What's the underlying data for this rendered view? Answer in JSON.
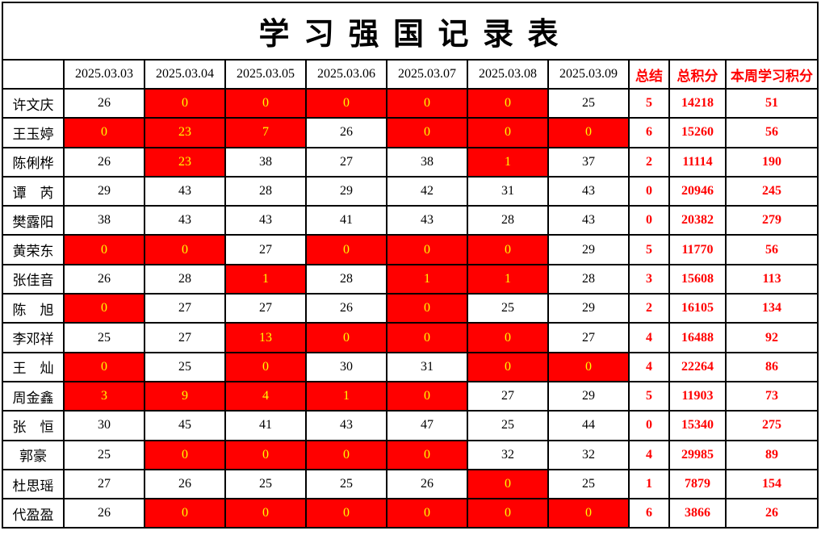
{
  "title": "学 习 强 国 记 录 表",
  "colors": {
    "highlight_bg": "#FF0000",
    "highlight_text": "#FFFF00",
    "accent_text": "#FF0000",
    "grid_line": "#000000"
  },
  "table": {
    "corner_label": "",
    "date_headers": [
      "2025.03.03",
      "2025.03.04",
      "2025.03.05",
      "2025.03.06",
      "2025.03.07",
      "2025.03.08",
      "2025.03.09"
    ],
    "summary_headers": [
      "总结",
      "总积分",
      "本周学习积分"
    ],
    "rows": [
      {
        "name": "许文庆",
        "daily": [
          {
            "v": 26,
            "red": false
          },
          {
            "v": 0,
            "red": true
          },
          {
            "v": 0,
            "red": true
          },
          {
            "v": 0,
            "red": true
          },
          {
            "v": 0,
            "red": true
          },
          {
            "v": 0,
            "red": true
          },
          {
            "v": 25,
            "red": false
          }
        ],
        "summary": 5,
        "total": 14218,
        "week": 51
      },
      {
        "name": "王玉婷",
        "daily": [
          {
            "v": 0,
            "red": true
          },
          {
            "v": 23,
            "red": true
          },
          {
            "v": 7,
            "red": true
          },
          {
            "v": 26,
            "red": false
          },
          {
            "v": 0,
            "red": true
          },
          {
            "v": 0,
            "red": true
          },
          {
            "v": 0,
            "red": true
          }
        ],
        "summary": 6,
        "total": 15260,
        "week": 56
      },
      {
        "name": "陈俐桦",
        "daily": [
          {
            "v": 26,
            "red": false
          },
          {
            "v": 23,
            "red": true
          },
          {
            "v": 38,
            "red": false
          },
          {
            "v": 27,
            "red": false
          },
          {
            "v": 38,
            "red": false
          },
          {
            "v": 1,
            "red": true
          },
          {
            "v": 37,
            "red": false
          }
        ],
        "summary": 2,
        "total": 11114,
        "week": 190
      },
      {
        "name": "谭　芮",
        "daily": [
          {
            "v": 29,
            "red": false
          },
          {
            "v": 43,
            "red": false
          },
          {
            "v": 28,
            "red": false
          },
          {
            "v": 29,
            "red": false
          },
          {
            "v": 42,
            "red": false
          },
          {
            "v": 31,
            "red": false
          },
          {
            "v": 43,
            "red": false
          }
        ],
        "summary": 0,
        "total": 20946,
        "week": 245
      },
      {
        "name": "樊露阳",
        "daily": [
          {
            "v": 38,
            "red": false
          },
          {
            "v": 43,
            "red": false
          },
          {
            "v": 43,
            "red": false
          },
          {
            "v": 41,
            "red": false
          },
          {
            "v": 43,
            "red": false
          },
          {
            "v": 28,
            "red": false
          },
          {
            "v": 43,
            "red": false
          }
        ],
        "summary": 0,
        "total": 20382,
        "week": 279
      },
      {
        "name": "黄荣东",
        "daily": [
          {
            "v": 0,
            "red": true
          },
          {
            "v": 0,
            "red": true
          },
          {
            "v": 27,
            "red": false
          },
          {
            "v": 0,
            "red": true
          },
          {
            "v": 0,
            "red": true
          },
          {
            "v": 0,
            "red": true
          },
          {
            "v": 29,
            "red": false
          }
        ],
        "summary": 5,
        "total": 11770,
        "week": 56
      },
      {
        "name": "张佳音",
        "daily": [
          {
            "v": 26,
            "red": false
          },
          {
            "v": 28,
            "red": false
          },
          {
            "v": 1,
            "red": true
          },
          {
            "v": 28,
            "red": false
          },
          {
            "v": 1,
            "red": true
          },
          {
            "v": 1,
            "red": true
          },
          {
            "v": 28,
            "red": false
          }
        ],
        "summary": 3,
        "total": 15608,
        "week": 113
      },
      {
        "name": "陈　旭",
        "daily": [
          {
            "v": 0,
            "red": true
          },
          {
            "v": 27,
            "red": false
          },
          {
            "v": 27,
            "red": false
          },
          {
            "v": 26,
            "red": false
          },
          {
            "v": 0,
            "red": true
          },
          {
            "v": 25,
            "red": false
          },
          {
            "v": 29,
            "red": false
          }
        ],
        "summary": 2,
        "total": 16105,
        "week": 134
      },
      {
        "name": "李邓祥",
        "daily": [
          {
            "v": 25,
            "red": false
          },
          {
            "v": 27,
            "red": false
          },
          {
            "v": 13,
            "red": true
          },
          {
            "v": 0,
            "red": true
          },
          {
            "v": 0,
            "red": true
          },
          {
            "v": 0,
            "red": true
          },
          {
            "v": 27,
            "red": false
          }
        ],
        "summary": 4,
        "total": 16488,
        "week": 92
      },
      {
        "name": "王　灿",
        "daily": [
          {
            "v": 0,
            "red": true
          },
          {
            "v": 25,
            "red": false
          },
          {
            "v": 0,
            "red": true
          },
          {
            "v": 30,
            "red": false
          },
          {
            "v": 31,
            "red": false
          },
          {
            "v": 0,
            "red": true
          },
          {
            "v": 0,
            "red": true
          }
        ],
        "summary": 4,
        "total": 22264,
        "week": 86
      },
      {
        "name": "周金鑫",
        "daily": [
          {
            "v": 3,
            "red": true
          },
          {
            "v": 9,
            "red": true
          },
          {
            "v": 4,
            "red": true
          },
          {
            "v": 1,
            "red": true
          },
          {
            "v": 0,
            "red": true
          },
          {
            "v": 27,
            "red": false
          },
          {
            "v": 29,
            "red": false
          }
        ],
        "summary": 5,
        "total": 11903,
        "week": 73
      },
      {
        "name": "张　恒",
        "daily": [
          {
            "v": 30,
            "red": false
          },
          {
            "v": 45,
            "red": false
          },
          {
            "v": 41,
            "red": false
          },
          {
            "v": 43,
            "red": false
          },
          {
            "v": 47,
            "red": false
          },
          {
            "v": 25,
            "red": false
          },
          {
            "v": 44,
            "red": false
          }
        ],
        "summary": 0,
        "total": 15340,
        "week": 275
      },
      {
        "name": "郭豪",
        "daily": [
          {
            "v": 25,
            "red": false
          },
          {
            "v": 0,
            "red": true
          },
          {
            "v": 0,
            "red": true
          },
          {
            "v": 0,
            "red": true
          },
          {
            "v": 0,
            "red": true
          },
          {
            "v": 32,
            "red": false
          },
          {
            "v": 32,
            "red": false
          }
        ],
        "summary": 4,
        "total": 29985,
        "week": 89
      },
      {
        "name": "杜思瑶",
        "daily": [
          {
            "v": 27,
            "red": false
          },
          {
            "v": 26,
            "red": false
          },
          {
            "v": 25,
            "red": false
          },
          {
            "v": 25,
            "red": false
          },
          {
            "v": 26,
            "red": false
          },
          {
            "v": 0,
            "red": true
          },
          {
            "v": 25,
            "red": false
          }
        ],
        "summary": 1,
        "total": 7879,
        "week": 154
      },
      {
        "name": "代盈盈",
        "daily": [
          {
            "v": 26,
            "red": false
          },
          {
            "v": 0,
            "red": true
          },
          {
            "v": 0,
            "red": true
          },
          {
            "v": 0,
            "red": true
          },
          {
            "v": 0,
            "red": true
          },
          {
            "v": 0,
            "red": true
          },
          {
            "v": 0,
            "red": true
          }
        ],
        "summary": 6,
        "total": 3866,
        "week": 26
      }
    ]
  }
}
